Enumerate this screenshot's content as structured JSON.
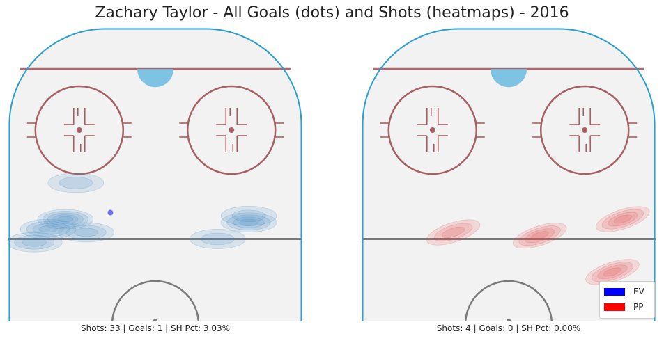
{
  "title": "Zachary Taylor - All Goals (dots) and Shots (heatmaps) - 2016",
  "colors": {
    "ice": "#f2f2f2",
    "boards": "#2a9fd0",
    "goal_line": "#a86a6a",
    "faceoff": "#a85f62",
    "blue_line": "#7a7a7a",
    "crease": "#7fc3e2",
    "ev": "#0000ff",
    "pp": "#ff0000"
  },
  "legend": [
    {
      "label": "EV",
      "color": "#0000ff"
    },
    {
      "label": "PP",
      "color": "#ff0000"
    }
  ],
  "chart_data": [
    {
      "type": "heatmap",
      "situation": "EV",
      "caption": "Shots: 33 | Goals: 1 | SH Pct: 3.03%",
      "stats": {
        "shots": 33,
        "goals": 1,
        "sh_pct": "3.03%"
      },
      "xlim": [
        -42.5,
        42.5
      ],
      "ylim": [
        0,
        89
      ],
      "shot_density_centers": [
        {
          "x": -26,
          "y": 58,
          "level": 4
        },
        {
          "x": -31,
          "y": 61,
          "level": 3
        },
        {
          "x": -20,
          "y": 62,
          "level": 2
        },
        {
          "x": -35,
          "y": 65,
          "level": 2
        },
        {
          "x": -23,
          "y": 47,
          "level": 1
        },
        {
          "x": 27,
          "y": 59,
          "level": 3
        },
        {
          "x": 18,
          "y": 64,
          "level": 1
        },
        {
          "x": 27,
          "y": 57,
          "level": 1
        }
      ],
      "goals": [
        {
          "x": -13,
          "y": 56
        }
      ]
    },
    {
      "type": "heatmap",
      "situation": "PP",
      "caption": "Shots: 4 | Goals: 0 | SH Pct: 0.00%",
      "stats": {
        "shots": 4,
        "goals": 0,
        "sh_pct": "0.00%"
      },
      "xlim": [
        -42.5,
        42.5
      ],
      "ylim": [
        0,
        89
      ],
      "shot_density_centers": [
        {
          "x": 9,
          "y": 63,
          "level": 3
        },
        {
          "x": 33,
          "y": 58,
          "level": 3
        },
        {
          "x": 30,
          "y": 74,
          "level": 3
        },
        {
          "x": -16,
          "y": 62,
          "level": 2
        }
      ],
      "goals": []
    }
  ]
}
